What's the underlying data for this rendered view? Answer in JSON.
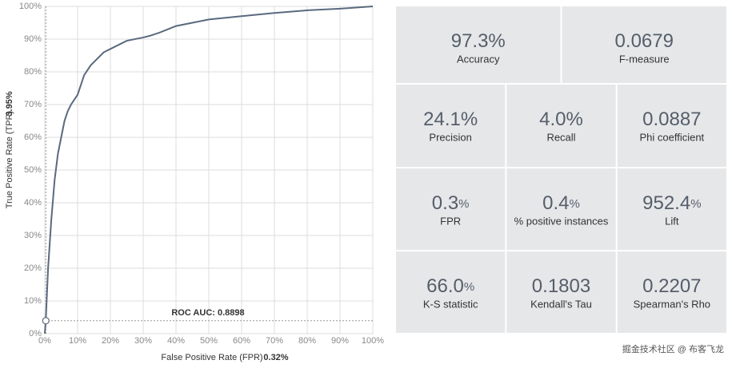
{
  "chart_data": {
    "type": "line",
    "x_label": "False Positive Rate (FPR)",
    "y_label": "True Positive Rate (TPR)",
    "x": [
      0,
      0.3,
      1,
      2,
      3,
      4,
      5,
      6,
      7,
      8,
      10,
      11,
      12,
      14,
      16,
      18,
      20,
      22,
      25,
      30,
      32,
      35,
      40,
      45,
      50,
      60,
      70,
      80,
      90,
      100
    ],
    "series": [
      {
        "name": "ROC",
        "color": "#5a6a7e",
        "values": [
          0,
          4,
          20,
          35,
          47,
          55,
          60,
          65,
          68,
          70,
          73,
          76,
          79,
          82,
          84,
          86,
          87,
          88,
          89.5,
          90.5,
          91,
          92,
          94,
          95,
          96,
          97,
          98,
          98.8,
          99.3,
          100
        ]
      }
    ],
    "xlim": [
      0,
      100
    ],
    "ylim": [
      0,
      100
    ],
    "xticks": [
      {
        "value": 0,
        "label": "0%"
      },
      {
        "value": 10,
        "label": "10%"
      },
      {
        "value": 20,
        "label": "20%"
      },
      {
        "value": 30,
        "label": "30%"
      },
      {
        "value": 40,
        "label": "40%"
      },
      {
        "value": 50,
        "label": "50%"
      },
      {
        "value": 60,
        "label": "60%"
      },
      {
        "value": 70,
        "label": "70%"
      },
      {
        "value": 80,
        "label": "80%"
      },
      {
        "value": 90,
        "label": "90%"
      },
      {
        "value": 100,
        "label": "100%"
      }
    ],
    "yticks": [
      {
        "value": 0,
        "label": "0%"
      },
      {
        "value": 10,
        "label": "10%"
      },
      {
        "value": 20,
        "label": "20%"
      },
      {
        "value": 30,
        "label": "30%"
      },
      {
        "value": 40,
        "label": "40%"
      },
      {
        "value": 50,
        "label": "50%"
      },
      {
        "value": 60,
        "label": "60%"
      },
      {
        "value": 70,
        "label": "70%"
      },
      {
        "value": 80,
        "label": "80%"
      },
      {
        "value": 90,
        "label": "90%"
      },
      {
        "value": 100,
        "label": "100%"
      }
    ],
    "grid": true,
    "operating_point": {
      "x": 0.32,
      "y": 3.95,
      "x_label": "0.32%",
      "y_label": "3.95%"
    },
    "annotation": "ROC AUC: 0.8898"
  },
  "metrics": [
    [
      {
        "value": "97.3%",
        "label": "Accuracy"
      },
      {
        "value": "0.0679",
        "label": "F-measure"
      }
    ],
    [
      {
        "value": "24.1%",
        "label": "Precision"
      },
      {
        "value": "4.0%",
        "label": "Recall"
      },
      {
        "value": "0.0887",
        "label": "Phi coefficient"
      }
    ],
    [
      {
        "value": "0.3",
        "unit": "%",
        "label": "FPR"
      },
      {
        "value": "0.4",
        "unit": "%",
        "label": "% positive instances"
      },
      {
        "value": "952.4",
        "unit": "%",
        "label": "Lift"
      }
    ],
    [
      {
        "value": "66.0",
        "unit": "%",
        "label": "K-S statistic"
      },
      {
        "value": "0.1803",
        "label": "Kendall's Tau"
      },
      {
        "value": "0.2207",
        "label": "Spearman's Rho"
      }
    ]
  ],
  "watermark": "掘金技术社区 @ 布客飞龙"
}
